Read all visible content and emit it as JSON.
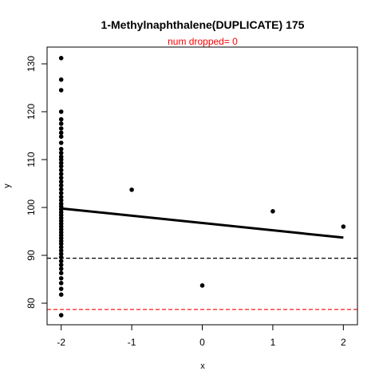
{
  "chart_data": {
    "type": "scatter",
    "title": "1-Methylnaphthalene(DUPLICATE) 175",
    "subtitle": "num dropped= 0",
    "subtitle_color": "#ff0000",
    "xlabel": "x",
    "ylabel": "y",
    "xlim": [
      -2.2,
      2.2
    ],
    "ylim": [
      75.5,
      133.5
    ],
    "x_ticks": [
      -2,
      -1,
      0,
      1,
      2
    ],
    "x_tick_labels": [
      "-2",
      "-1",
      "0",
      "1",
      "2"
    ],
    "y_ticks": [
      80,
      90,
      100,
      110,
      120,
      130
    ],
    "y_tick_labels": [
      "80",
      "90",
      "100",
      "110",
      "120",
      "130"
    ],
    "points": [
      {
        "x": -2,
        "y": 131.2
      },
      {
        "x": -2,
        "y": 126.7
      },
      {
        "x": -2,
        "y": 124.5
      },
      {
        "x": -2,
        "y": 120.0
      },
      {
        "x": -2,
        "y": 118.4
      },
      {
        "x": -2,
        "y": 117.5
      },
      {
        "x": -2,
        "y": 116.5
      },
      {
        "x": -2,
        "y": 115.6
      },
      {
        "x": -2,
        "y": 114.8
      },
      {
        "x": -2,
        "y": 113.5
      },
      {
        "x": -2,
        "y": 112.2
      },
      {
        "x": -2,
        "y": 111.4
      },
      {
        "x": -2,
        "y": 110.6
      },
      {
        "x": -2,
        "y": 110.0
      },
      {
        "x": -2,
        "y": 109.3
      },
      {
        "x": -2,
        "y": 108.6
      },
      {
        "x": -2,
        "y": 107.8
      },
      {
        "x": -2,
        "y": 107.0
      },
      {
        "x": -2,
        "y": 106.2
      },
      {
        "x": -2,
        "y": 105.4
      },
      {
        "x": -2,
        "y": 104.6
      },
      {
        "x": -2,
        "y": 103.8
      },
      {
        "x": -2,
        "y": 103.0
      },
      {
        "x": -2,
        "y": 102.2
      },
      {
        "x": -2,
        "y": 101.5
      },
      {
        "x": -2,
        "y": 100.8
      },
      {
        "x": -2,
        "y": 100.2
      },
      {
        "x": -2,
        "y": 99.6
      },
      {
        "x": -2,
        "y": 99.0
      },
      {
        "x": -2,
        "y": 98.4
      },
      {
        "x": -2,
        "y": 97.8
      },
      {
        "x": -2,
        "y": 97.2
      },
      {
        "x": -2,
        "y": 96.6
      },
      {
        "x": -2,
        "y": 96.0
      },
      {
        "x": -2,
        "y": 95.4
      },
      {
        "x": -2,
        "y": 94.8
      },
      {
        "x": -2,
        "y": 94.2
      },
      {
        "x": -2,
        "y": 93.6
      },
      {
        "x": -2,
        "y": 93.0
      },
      {
        "x": -2,
        "y": 92.4
      },
      {
        "x": -2,
        "y": 91.7
      },
      {
        "x": -2,
        "y": 91.0
      },
      {
        "x": -2,
        "y": 90.3
      },
      {
        "x": -2,
        "y": 89.6
      },
      {
        "x": -2,
        "y": 88.8
      },
      {
        "x": -2,
        "y": 88.0
      },
      {
        "x": -2,
        "y": 87.2
      },
      {
        "x": -2,
        "y": 86.3
      },
      {
        "x": -2,
        "y": 85.2
      },
      {
        "x": -2,
        "y": 84.2
      },
      {
        "x": -2,
        "y": 83.0
      },
      {
        "x": -2,
        "y": 81.8
      },
      {
        "x": -2,
        "y": 77.5
      },
      {
        "x": -1,
        "y": 103.7
      },
      {
        "x": 0,
        "y": 83.7
      },
      {
        "x": 1,
        "y": 99.2
      },
      {
        "x": 2,
        "y": 96.0
      }
    ],
    "regression_line": {
      "x": [
        -2,
        2
      ],
      "y": [
        99.8,
        93.7
      ],
      "color": "#000000"
    },
    "hlines": [
      {
        "y": 89.4,
        "color": "#000000",
        "style": "dashed"
      },
      {
        "y": 78.7,
        "color": "#ff0000",
        "style": "dashed"
      }
    ],
    "grid": false,
    "point_color": "#000000"
  }
}
